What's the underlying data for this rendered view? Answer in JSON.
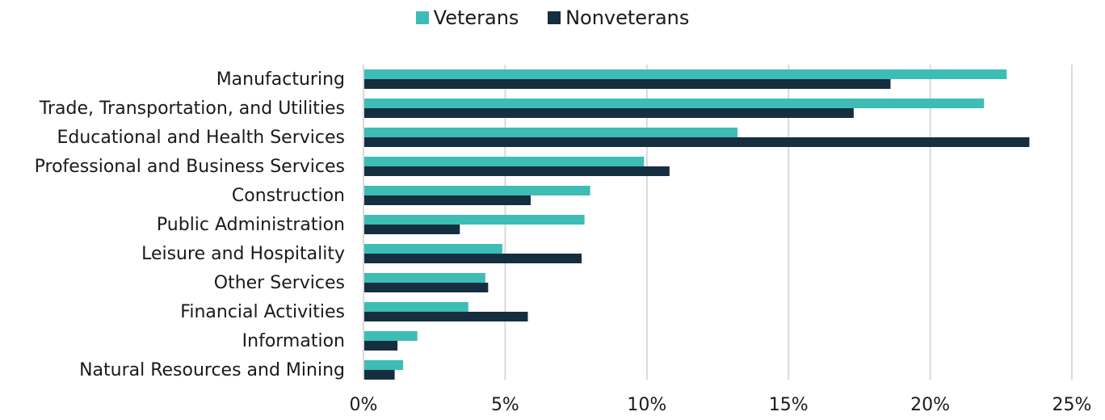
{
  "chart_data": {
    "type": "bar",
    "orientation": "horizontal",
    "categories": [
      "Manufacturing",
      "Trade, Transportation, and Utilities",
      "Educational and Health Services",
      "Professional and Business Services",
      "Construction",
      "Public Administration",
      "Leisure and Hospitality",
      "Other Services",
      "Financial Activities",
      "Information",
      "Natural Resources and Mining"
    ],
    "series": [
      {
        "name": "Veterans",
        "color": "#3dbdb5",
        "values": [
          22.7,
          21.9,
          13.2,
          9.9,
          8.0,
          7.8,
          4.9,
          4.3,
          3.7,
          1.9,
          1.4
        ]
      },
      {
        "name": "Nonveterans",
        "color": "#152e40",
        "values": [
          18.6,
          17.3,
          23.5,
          10.8,
          5.9,
          3.4,
          7.7,
          4.4,
          5.8,
          1.2,
          1.1
        ]
      }
    ],
    "xlim": [
      0,
      25
    ],
    "xticks": [
      0,
      5,
      10,
      15,
      20,
      25
    ],
    "tick_format": "percent",
    "grid": true,
    "legend_position": "top-center",
    "title": "",
    "xlabel": "",
    "ylabel": ""
  }
}
